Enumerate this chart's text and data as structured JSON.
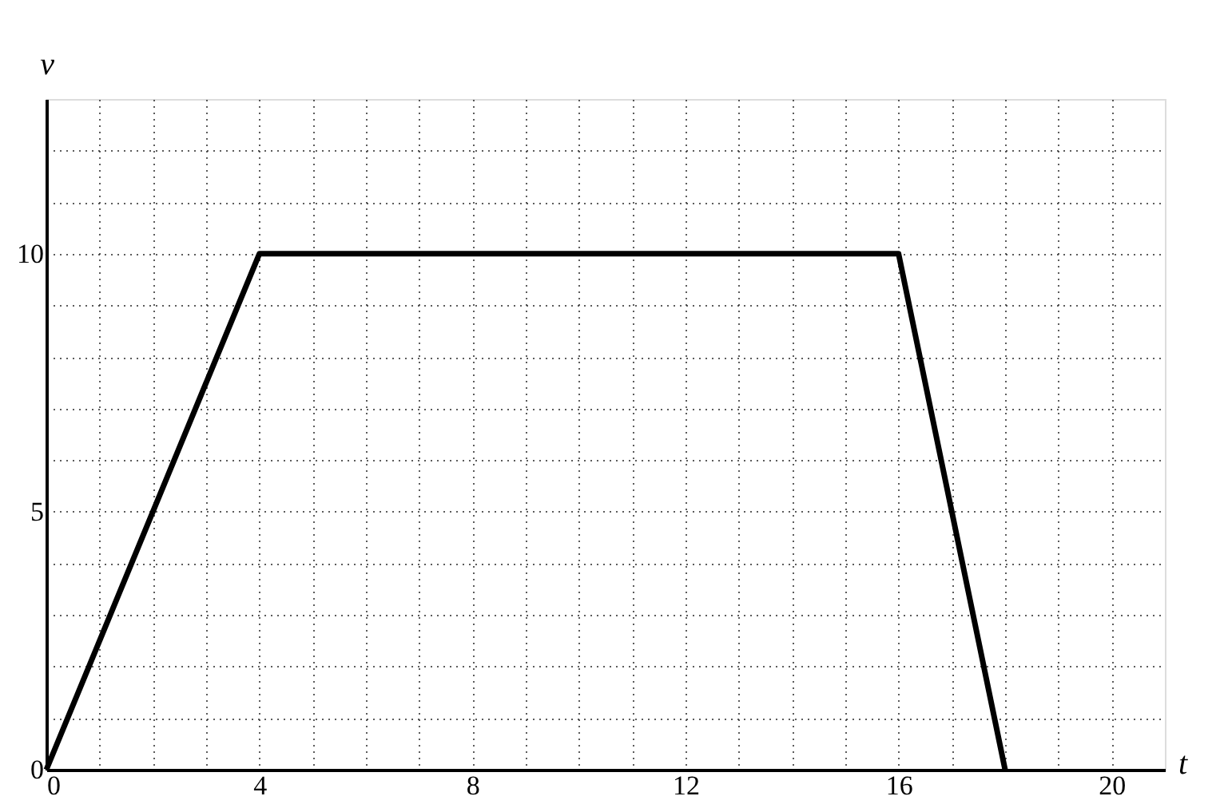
{
  "chart_data": {
    "type": "line",
    "xlabel": "t",
    "ylabel": "v",
    "x": [
      0,
      4,
      16,
      18
    ],
    "series": [
      {
        "color": "#000000",
        "values": [
          0,
          10,
          10,
          0
        ]
      }
    ],
    "xlim": [
      0,
      21
    ],
    "ylim": [
      0,
      13
    ],
    "xticks": [
      0,
      {
        "value": 1,
        "label": null
      },
      {
        "value": 2,
        "label": null
      },
      {
        "value": 3,
        "label": null
      },
      4,
      {
        "value": 5,
        "label": null
      },
      {
        "value": 6,
        "label": null
      },
      {
        "value": 7,
        "label": null
      },
      8,
      {
        "value": 9,
        "label": null
      },
      {
        "value": 10,
        "label": null
      },
      {
        "value": 11,
        "label": null
      },
      12,
      {
        "value": 13,
        "label": null
      },
      {
        "value": 14,
        "label": null
      },
      {
        "value": 15,
        "label": null
      },
      16,
      {
        "value": 17,
        "label": null
      },
      {
        "value": 18,
        "label": null
      },
      {
        "value": 19,
        "label": null
      },
      20
    ],
    "yticks": [
      0,
      {
        "value": 1,
        "label": null
      },
      {
        "value": 2,
        "label": null
      },
      {
        "value": 3,
        "label": null
      },
      {
        "value": 4,
        "label": null
      },
      5,
      {
        "value": 6,
        "label": null
      },
      {
        "value": 7,
        "label": null
      },
      {
        "value": 8,
        "label": null
      },
      {
        "value": 9,
        "label": null
      },
      10,
      {
        "value": 11,
        "label": null
      },
      {
        "value": 12,
        "label": null
      }
    ],
    "grid": true,
    "marker": "none",
    "line_style": "solid"
  }
}
